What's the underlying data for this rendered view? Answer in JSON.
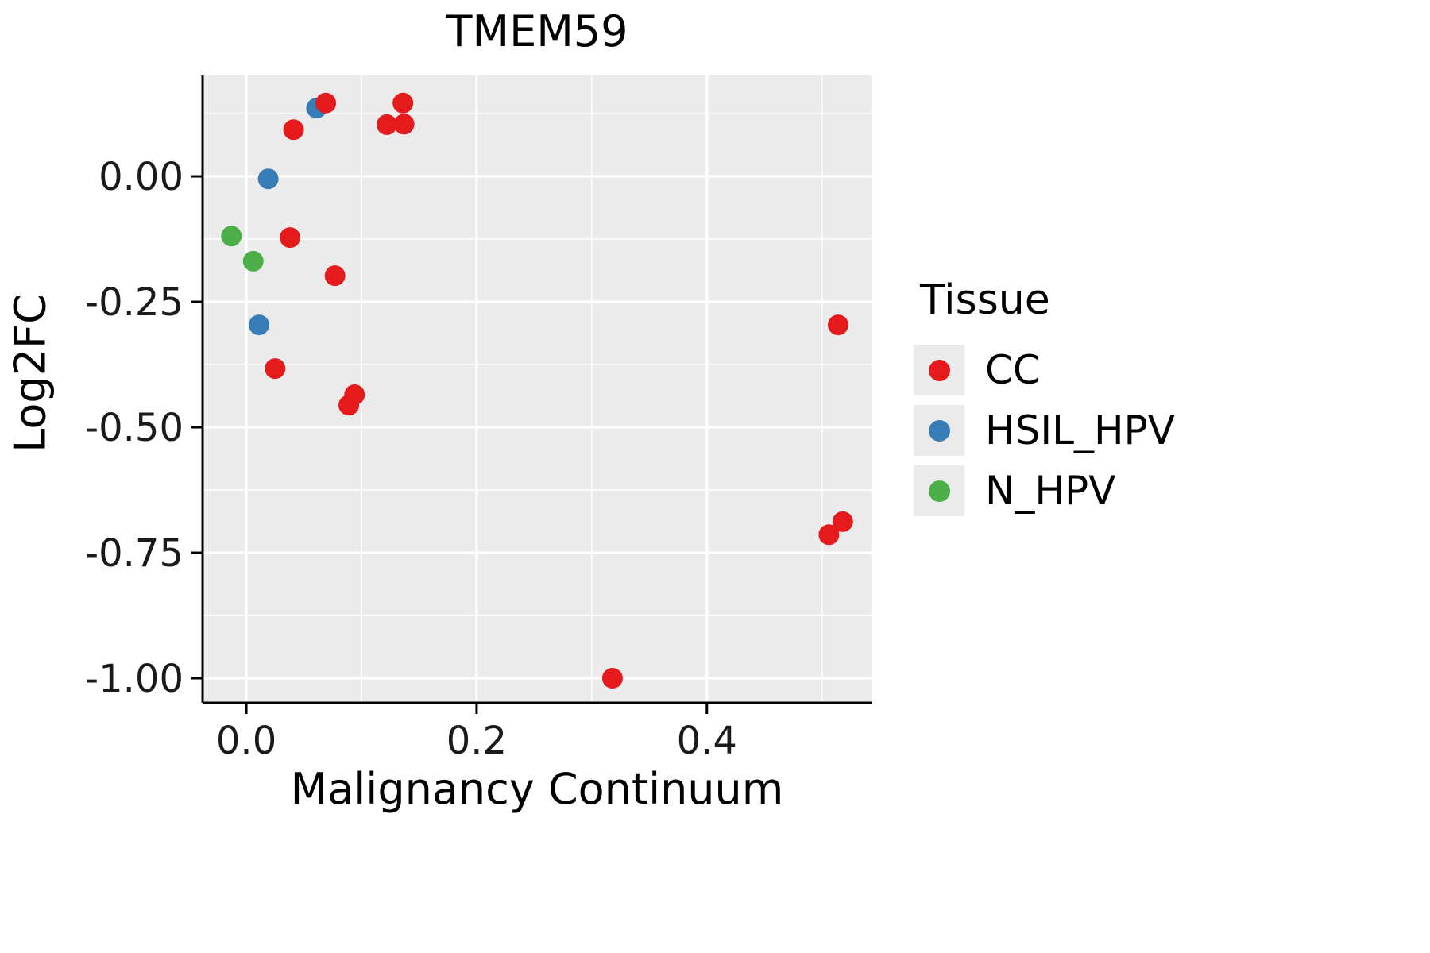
{
  "title": "TMEM59",
  "chart_data": {
    "type": "scatter",
    "title": "TMEM59",
    "xlabel": "Malignancy Continuum",
    "ylabel": "Log2FC",
    "xlim": [
      -0.038,
      0.543
    ],
    "ylim": [
      -1.049,
      0.201
    ],
    "grid": true,
    "panel_background": "#EBEBEB",
    "grid_color": "#FFFFFF",
    "axis_color": "#000000",
    "tick_label_color": "#1a1a1a",
    "x_ticks": {
      "values": [
        0.0,
        0.2,
        0.4
      ],
      "labels": [
        "0.0",
        "0.2",
        "0.4"
      ]
    },
    "x_minor": [
      0.1,
      0.3,
      0.5
    ],
    "y_ticks": {
      "values": [
        0.0,
        -0.25,
        -0.5,
        -0.75,
        -1.0
      ],
      "labels": [
        "0.00",
        "-0.25",
        "-0.50",
        "-0.75",
        "-1.00"
      ]
    },
    "y_minor": [
      0.125,
      -0.125,
      -0.375,
      -0.625,
      -0.875
    ],
    "legend": {
      "title": "Tissue",
      "position": "right",
      "key_background": "#EBEBEB"
    },
    "series": [
      {
        "name": "CC",
        "color": "#E41A1C",
        "points": [
          [
            0.069,
            0.146
          ],
          [
            0.136,
            0.146
          ],
          [
            0.122,
            0.103
          ],
          [
            0.137,
            0.104
          ],
          [
            0.041,
            0.093
          ],
          [
            0.038,
            -0.122
          ],
          [
            0.077,
            -0.198
          ],
          [
            0.025,
            -0.383
          ],
          [
            0.094,
            -0.435
          ],
          [
            0.089,
            -0.456
          ],
          [
            0.514,
            -0.296
          ],
          [
            0.518,
            -0.688
          ],
          [
            0.506,
            -0.714
          ],
          [
            0.318,
            -1.0
          ]
        ]
      },
      {
        "name": "HSIL_HPV",
        "color": "#377EB8",
        "points": [
          [
            0.061,
            0.136
          ],
          [
            0.019,
            -0.005
          ],
          [
            0.011,
            -0.296
          ]
        ]
      },
      {
        "name": "N_HPV",
        "color": "#4DAF4A",
        "points": [
          [
            -0.013,
            -0.119
          ],
          [
            0.006,
            -0.169
          ]
        ]
      }
    ]
  }
}
